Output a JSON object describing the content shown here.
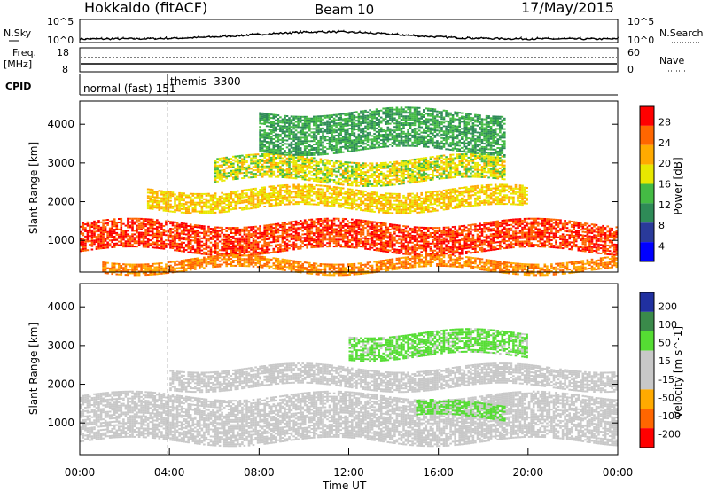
{
  "header": {
    "station": "Hokkaido (fitACF)",
    "beam": "Beam 10",
    "date": "17/May/2015"
  },
  "top_panels": {
    "nsky_label": "N.Sky",
    "nsky_ticks": [
      "10^5",
      "10^0"
    ],
    "nsearch_label": "N.Search",
    "nsearch_ticks": [
      "10^5",
      "10^0"
    ],
    "freq_label_1": "Freq.",
    "freq_label_2": "[MHz]",
    "freq_ticks": [
      "18",
      "8"
    ],
    "nave_label": "Nave",
    "nave_ticks": [
      "60",
      "0"
    ],
    "cpid_label": "CPID",
    "cpid_mode_1": "normal (fast) 151",
    "cpid_mode_2": "themis -3300"
  },
  "x_axis": {
    "label": "Time UT",
    "ticks": [
      "00:00",
      "04:00",
      "08:00",
      "12:00",
      "16:00",
      "20:00",
      "00:00"
    ]
  },
  "chart_data": [
    {
      "type": "heatmap",
      "panel": "power",
      "ylabel": "Slant Range [km]",
      "y_ticks": [
        "1000",
        "2000",
        "3000",
        "4000"
      ],
      "ylim": [
        180,
        4600
      ],
      "xlim_hours": [
        0,
        24
      ],
      "colorbar_label": "Power [dB]",
      "colorbar_ticks": [
        "28",
        "24",
        "20",
        "16",
        "12",
        "8",
        "4"
      ],
      "colorbar_colors": [
        "#ff0000",
        "#ff6600",
        "#ffaa00",
        "#e8e800",
        "#44bb44",
        "#2e8b57",
        "#2a3a9a",
        "#0000ff"
      ],
      "regions": [
        {
          "t0": 0,
          "t1": 24,
          "r0": 700,
          "r1": 1450,
          "level": 26
        },
        {
          "t0": 3,
          "t1": 20,
          "r0": 1800,
          "r1": 2300,
          "level": 18
        },
        {
          "t0": 6,
          "t1": 19,
          "r0": 2500,
          "r1": 3100,
          "level": 16
        },
        {
          "t0": 1,
          "t1": 24,
          "r0": 200,
          "r1": 500,
          "level": 22
        },
        {
          "t0": 8,
          "t1": 19,
          "r0": 3300,
          "r1": 4300,
          "level": 10
        }
      ]
    },
    {
      "type": "heatmap",
      "panel": "velocity",
      "ylabel": "Slant Range [km]",
      "y_ticks": [
        "1000",
        "2000",
        "3000",
        "4000"
      ],
      "ylim": [
        180,
        4600
      ],
      "xlim_hours": [
        0,
        24
      ],
      "colorbar_label": "Velocity [m s^-1]",
      "colorbar_ticks": [
        "200",
        "100",
        "50",
        "15",
        "-15",
        "-50",
        "-100",
        "-200"
      ],
      "colorbar_colors": [
        "#2030a0",
        "#3a8a4a",
        "#55dd33",
        "#c8c8c8",
        "#c8c8c8",
        "#ffaa00",
        "#ff6600",
        "#ff0000"
      ],
      "regions": [
        {
          "t0": 0,
          "t1": 24,
          "r0": 500,
          "r1": 1700,
          "level": 0
        },
        {
          "t0": 4,
          "t1": 24,
          "r0": 1900,
          "r1": 2400,
          "level": 0
        },
        {
          "t0": 12,
          "t1": 20,
          "r0": 2700,
          "r1": 3300,
          "level": 60
        },
        {
          "t0": 15,
          "t1": 19,
          "r0": 1100,
          "r1": 1500,
          "level": 60
        }
      ]
    }
  ]
}
